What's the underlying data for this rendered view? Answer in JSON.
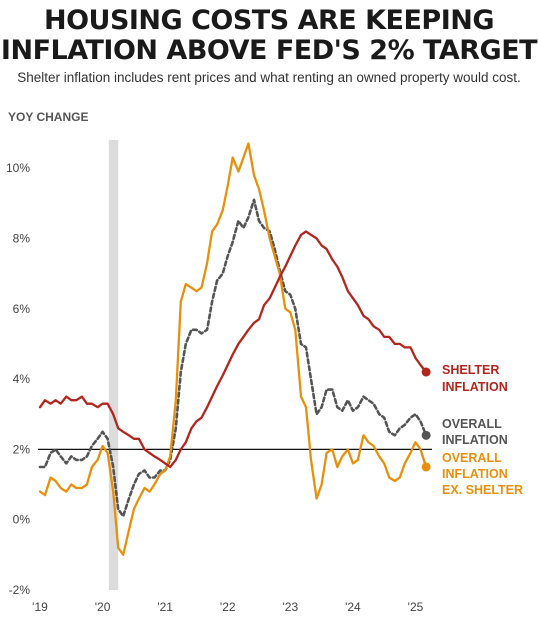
{
  "title_line1": "HOUSING COSTS ARE KEEPING",
  "title_line2": "INFLATION ABOVE FED'S 2% TARGET",
  "subtitle": "Shelter inflation includes rent prices and what renting an owned property would cost.",
  "chart_data": {
    "type": "line",
    "ylabel": "YOY CHANGE",
    "ylim": [
      -2,
      10.8
    ],
    "yticks": [
      -2,
      0,
      2,
      4,
      6,
      8,
      10
    ],
    "ytick_labels": [
      "-2%",
      "0%",
      "2%",
      "4%",
      "6%",
      "8%",
      "10%"
    ],
    "xlim": [
      2019.0,
      2025.2
    ],
    "xticks": [
      2019,
      2020,
      2021,
      2022,
      2023,
      2024,
      2025
    ],
    "xtick_labels": [
      "'19",
      "'20",
      "'21",
      "'22",
      "'23",
      "'24",
      "'25"
    ],
    "reference_line": 2,
    "recession_band": [
      2020.1,
      2020.25
    ],
    "grid": false,
    "legend": "inline labels at right end of lines",
    "series": [
      {
        "name": "SHELTER INFLATION",
        "label_lines": [
          "SHELTER",
          "INFLATION"
        ],
        "color": "#b3261e",
        "style": "solid",
        "x": [
          2019.0,
          2019.08,
          2019.17,
          2019.25,
          2019.33,
          2019.42,
          2019.5,
          2019.58,
          2019.67,
          2019.75,
          2019.83,
          2019.92,
          2020.0,
          2020.08,
          2020.17,
          2020.25,
          2020.33,
          2020.42,
          2020.5,
          2020.58,
          2020.67,
          2020.75,
          2020.83,
          2020.92,
          2021.0,
          2021.08,
          2021.17,
          2021.25,
          2021.33,
          2021.42,
          2021.5,
          2021.58,
          2021.67,
          2021.75,
          2021.83,
          2021.92,
          2022.0,
          2022.08,
          2022.17,
          2022.25,
          2022.33,
          2022.42,
          2022.5,
          2022.58,
          2022.67,
          2022.75,
          2022.83,
          2022.92,
          2023.0,
          2023.08,
          2023.17,
          2023.25,
          2023.33,
          2023.42,
          2023.5,
          2023.58,
          2023.67,
          2023.75,
          2023.83,
          2023.92,
          2024.0,
          2024.08,
          2024.17,
          2024.25,
          2024.33,
          2024.42,
          2024.5,
          2024.58,
          2024.67,
          2024.75,
          2024.83,
          2024.92,
          2025.0,
          2025.08,
          2025.17
        ],
        "values": [
          3.2,
          3.4,
          3.3,
          3.4,
          3.3,
          3.5,
          3.4,
          3.4,
          3.5,
          3.3,
          3.3,
          3.2,
          3.3,
          3.3,
          3.0,
          2.6,
          2.5,
          2.4,
          2.3,
          2.3,
          2.0,
          1.9,
          1.8,
          1.7,
          1.6,
          1.5,
          1.7,
          2.0,
          2.2,
          2.6,
          2.8,
          2.9,
          3.2,
          3.5,
          3.8,
          4.1,
          4.4,
          4.7,
          5.0,
          5.2,
          5.4,
          5.6,
          5.7,
          6.1,
          6.3,
          6.6,
          6.9,
          7.2,
          7.5,
          7.8,
          8.1,
          8.2,
          8.1,
          8.0,
          7.8,
          7.7,
          7.4,
          7.2,
          6.9,
          6.5,
          6.3,
          6.1,
          5.8,
          5.7,
          5.5,
          5.4,
          5.2,
          5.2,
          5.0,
          5.0,
          4.9,
          4.9,
          4.6,
          4.4,
          4.2
        ]
      },
      {
        "name": "OVERALL INFLATION",
        "label_lines": [
          "OVERALL",
          "INFLATION"
        ],
        "color": "#555555",
        "style": "dashed",
        "x": [
          2019.0,
          2019.08,
          2019.17,
          2019.25,
          2019.33,
          2019.42,
          2019.5,
          2019.58,
          2019.67,
          2019.75,
          2019.83,
          2019.92,
          2020.0,
          2020.08,
          2020.17,
          2020.25,
          2020.33,
          2020.42,
          2020.5,
          2020.58,
          2020.67,
          2020.75,
          2020.83,
          2020.92,
          2021.0,
          2021.08,
          2021.17,
          2021.25,
          2021.33,
          2021.42,
          2021.5,
          2021.58,
          2021.67,
          2021.75,
          2021.83,
          2021.92,
          2022.0,
          2022.08,
          2022.17,
          2022.25,
          2022.33,
          2022.42,
          2022.5,
          2022.58,
          2022.67,
          2022.75,
          2022.83,
          2022.92,
          2023.0,
          2023.08,
          2023.17,
          2023.25,
          2023.33,
          2023.42,
          2023.5,
          2023.58,
          2023.67,
          2023.75,
          2023.83,
          2023.92,
          2024.0,
          2024.08,
          2024.17,
          2024.25,
          2024.33,
          2024.42,
          2024.5,
          2024.58,
          2024.67,
          2024.75,
          2024.83,
          2024.92,
          2025.0,
          2025.08,
          2025.17
        ],
        "values": [
          1.5,
          1.5,
          1.9,
          2.0,
          1.8,
          1.6,
          1.8,
          1.7,
          1.7,
          1.8,
          2.1,
          2.3,
          2.5,
          2.3,
          1.5,
          0.3,
          0.1,
          0.6,
          1.0,
          1.3,
          1.4,
          1.2,
          1.2,
          1.4,
          1.4,
          1.7,
          2.6,
          4.2,
          5.0,
          5.4,
          5.4,
          5.3,
          5.4,
          6.2,
          6.8,
          7.0,
          7.5,
          7.9,
          8.5,
          8.3,
          8.6,
          9.1,
          8.5,
          8.3,
          8.2,
          7.7,
          7.1,
          6.5,
          6.4,
          6.0,
          5.0,
          4.9,
          4.0,
          3.0,
          3.2,
          3.7,
          3.7,
          3.2,
          3.1,
          3.4,
          3.1,
          3.2,
          3.5,
          3.4,
          3.3,
          3.0,
          2.9,
          2.5,
          2.4,
          2.6,
          2.7,
          2.9,
          3.0,
          2.8,
          2.4
        ]
      },
      {
        "name": "OVERALL INFLATION EX. SHELTER",
        "label_lines": [
          "OVERALL",
          "INFLATION",
          "EX. SHELTER"
        ],
        "color": "#e8900c",
        "style": "solid",
        "x": [
          2019.0,
          2019.08,
          2019.17,
          2019.25,
          2019.33,
          2019.42,
          2019.5,
          2019.58,
          2019.67,
          2019.75,
          2019.83,
          2019.92,
          2020.0,
          2020.08,
          2020.17,
          2020.25,
          2020.33,
          2020.42,
          2020.5,
          2020.58,
          2020.67,
          2020.75,
          2020.83,
          2020.92,
          2021.0,
          2021.08,
          2021.17,
          2021.25,
          2021.33,
          2021.42,
          2021.5,
          2021.58,
          2021.67,
          2021.75,
          2021.83,
          2021.92,
          2022.0,
          2022.08,
          2022.17,
          2022.25,
          2022.33,
          2022.42,
          2022.5,
          2022.58,
          2022.67,
          2022.75,
          2022.83,
          2022.92,
          2023.0,
          2023.08,
          2023.17,
          2023.25,
          2023.33,
          2023.42,
          2023.5,
          2023.58,
          2023.67,
          2023.75,
          2023.83,
          2023.92,
          2024.0,
          2024.08,
          2024.17,
          2024.25,
          2024.33,
          2024.42,
          2024.5,
          2024.58,
          2024.67,
          2024.75,
          2024.83,
          2024.92,
          2025.0,
          2025.08,
          2025.17
        ],
        "values": [
          0.8,
          0.7,
          1.2,
          1.1,
          0.9,
          0.8,
          1.0,
          0.9,
          0.9,
          1.0,
          1.5,
          1.7,
          2.1,
          1.9,
          0.8,
          -0.8,
          -1.0,
          -0.3,
          0.3,
          0.6,
          0.9,
          0.8,
          1.0,
          1.3,
          1.4,
          1.8,
          3.4,
          6.2,
          6.7,
          6.6,
          6.5,
          6.6,
          7.3,
          8.2,
          8.4,
          8.8,
          9.5,
          10.3,
          9.9,
          10.3,
          10.7,
          9.8,
          9.4,
          8.8,
          8.0,
          7.5,
          7.0,
          6.0,
          5.9,
          5.4,
          3.5,
          3.2,
          1.7,
          0.6,
          1.0,
          1.9,
          2.0,
          1.5,
          1.8,
          2.0,
          1.6,
          1.7,
          2.4,
          2.2,
          2.1,
          1.8,
          1.6,
          1.2,
          1.1,
          1.2,
          1.6,
          1.9,
          2.2,
          2.0,
          1.5
        ]
      }
    ]
  }
}
